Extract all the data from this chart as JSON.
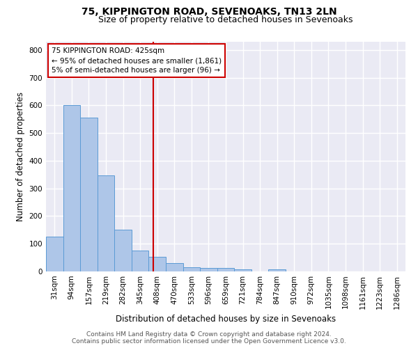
{
  "title": "75, KIPPINGTON ROAD, SEVENOAKS, TN13 2LN",
  "subtitle": "Size of property relative to detached houses in Sevenoaks",
  "xlabel": "Distribution of detached houses by size in Sevenoaks",
  "ylabel": "Number of detached properties",
  "bar_labels": [
    "31sqm",
    "94sqm",
    "157sqm",
    "219sqm",
    "282sqm",
    "345sqm",
    "408sqm",
    "470sqm",
    "533sqm",
    "596sqm",
    "659sqm",
    "721sqm",
    "784sqm",
    "847sqm",
    "910sqm",
    "972sqm",
    "1035sqm",
    "1098sqm",
    "1161sqm",
    "1223sqm",
    "1286sqm"
  ],
  "bar_values": [
    125,
    600,
    555,
    348,
    150,
    76,
    52,
    30,
    15,
    13,
    13,
    7,
    0,
    8,
    0,
    0,
    0,
    0,
    0,
    0,
    0
  ],
  "bar_color": "#aec6e8",
  "bar_edge_color": "#5b9bd5",
  "vline_color": "#cc0000",
  "annotation_line1": "75 KIPPINGTON ROAD: 425sqm",
  "annotation_line2": "← 95% of detached houses are smaller (1,861)",
  "annotation_line3": "5% of semi-detached houses are larger (96) →",
  "annotation_box_color": "#cc0000",
  "ylim": [
    0,
    830
  ],
  "yticks": [
    0,
    100,
    200,
    300,
    400,
    500,
    600,
    700,
    800
  ],
  "background_color": "#eaeaf4",
  "grid_color": "#ffffff",
  "footer_line1": "Contains HM Land Registry data © Crown copyright and database right 2024.",
  "footer_line2": "Contains public sector information licensed under the Open Government Licence v3.0.",
  "title_fontsize": 10,
  "subtitle_fontsize": 9,
  "xlabel_fontsize": 8.5,
  "ylabel_fontsize": 8.5,
  "tick_fontsize": 7.5,
  "footer_fontsize": 6.5,
  "annotation_fontsize": 7.5
}
